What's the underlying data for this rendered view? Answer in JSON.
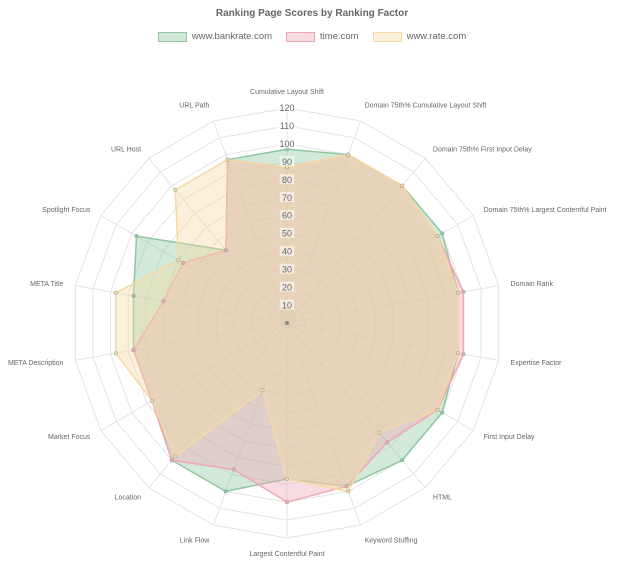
{
  "chart_data": {
    "type": "radar",
    "title": "Ranking Page Scores by Ranking Factor",
    "r_min": 0,
    "r_max": 120,
    "ticks": [
      10,
      20,
      30,
      40,
      50,
      60,
      70,
      80,
      90,
      100,
      110,
      120
    ],
    "tick_labels": [
      "10",
      "20",
      "30",
      "40",
      "50",
      "60",
      "70",
      "80",
      "90",
      "100",
      "110",
      "120"
    ],
    "grid": true,
    "legend_position": "top",
    "labels": [
      "Cumulative Layout Shift",
      "Domain 75th% Cumulative Layout Shift",
      "Domain 75th% First Input Delay",
      "Domain 75th% Largest Contentful Paint",
      "Domain Rank",
      "Expertise Factor",
      "First Input Delay",
      "HTML",
      "Keyword Stuffing",
      "Largest Contentful Paint",
      "Link Flow",
      "Location",
      "Market Focus",
      "META Description",
      "META Title",
      "Spotlight Focus",
      "URL Host",
      "URL Path"
    ],
    "series": [
      {
        "name": "www.bankrate.com",
        "color": "#8fc7a0",
        "values": [
          97,
          100,
          100,
          100,
          97,
          97,
          100,
          100,
          97,
          87,
          100,
          100,
          87,
          87,
          87,
          97,
          53,
          97
        ]
      },
      {
        "name": "time.com",
        "color": "#f1a7b3",
        "values": [
          87,
          100,
          100,
          97,
          100,
          100,
          97,
          87,
          97,
          100,
          87,
          100,
          87,
          87,
          70,
          67,
          53,
          97
        ]
      },
      {
        "name": "www.rate.com",
        "color": "#f4d9a3",
        "values": [
          87,
          100,
          100,
          97,
          97,
          97,
          97,
          80,
          100,
          87,
          40,
          97,
          87,
          97,
          97,
          70,
          97,
          97
        ]
      }
    ]
  }
}
